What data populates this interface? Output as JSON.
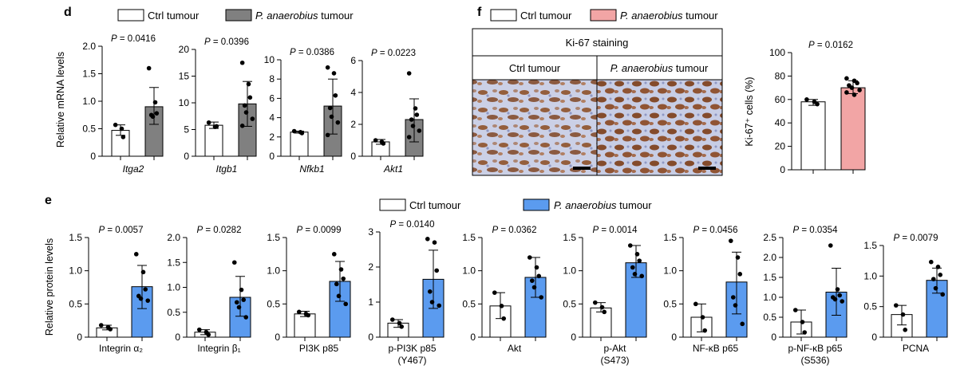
{
  "panels": {
    "d": {
      "label": "d",
      "legend": [
        {
          "name": "Ctrl tumour",
          "prefix": "",
          "italic": "",
          "suffix": "Ctrl tumour",
          "color": "#ffffff"
        },
        {
          "name": "P. anaerobius tumour",
          "prefix": "",
          "italic": "P. anaerobius",
          "suffix": " tumour",
          "color": "#808080"
        }
      ],
      "ylabel": "Relative mRNA levels"
    },
    "e": {
      "label": "e",
      "legend": [
        {
          "name": "Ctrl tumour",
          "prefix": "",
          "italic": "",
          "suffix": "Ctrl tumour",
          "color": "#ffffff"
        },
        {
          "name": "P. anaerobius tumour",
          "prefix": "",
          "italic": "P. anaerobius",
          "suffix": " tumour",
          "color": "#5b9bef"
        }
      ],
      "ylabel": "Relative protein levels"
    },
    "f": {
      "label": "f",
      "legend": [
        {
          "name": "Ctrl tumour",
          "prefix": "",
          "italic": "",
          "suffix": "Ctrl tumour",
          "color": "#ffffff"
        },
        {
          "name": "P. anaerobius tumour",
          "prefix": "",
          "italic": "P. anaerobius",
          "suffix": " tumour",
          "color": "#f2a5a5"
        }
      ],
      "staining_title": "Ki-67 staining",
      "image_labels": [
        "Ctrl tumour",
        "P. anaerobius tumour"
      ],
      "ylabel": "Ki-67⁺ cells (%)"
    }
  },
  "colors": {
    "ctrl": "#ffffff",
    "d_treat": "#808080",
    "e_treat": "#5b9bef",
    "f_treat": "#f2a5a5",
    "stain_brown": "#8b4a1f",
    "stain_blue": "#c9cfe6"
  },
  "chart_data": [
    {
      "panel": "d",
      "type": "bar",
      "gene": "Itga2",
      "ylim": [
        0,
        2
      ],
      "ticks": [
        0,
        0.5,
        1,
        1.5,
        2
      ],
      "tick_labels": [
        "0",
        "0.5",
        "1.0",
        "1.5",
        "2.0"
      ],
      "p": "P = 0.0416",
      "series": [
        {
          "name": "Ctrl tumour",
          "mean": 0.47,
          "err": [
            0.38,
            0.57
          ],
          "points": [
            0.57,
            0.5,
            0.35
          ]
        },
        {
          "name": "P. anaerobius tumour",
          "mean": 0.9,
          "err": [
            0.58,
            1.25
          ],
          "points": [
            1.6,
            0.98,
            0.78,
            0.75,
            0.72
          ]
        }
      ]
    },
    {
      "panel": "d",
      "type": "bar",
      "gene": "Itgb1",
      "ylim": [
        0,
        20
      ],
      "ticks": [
        0,
        5,
        10,
        15,
        20
      ],
      "tick_labels": [
        "0",
        "5",
        "10",
        "15",
        "20"
      ],
      "p": "P = 0.0396",
      "series": [
        {
          "name": "Ctrl tumour",
          "mean": 5.8,
          "err": [
            5.2,
            6.4
          ],
          "points": [
            6.3,
            5.5,
            5.6
          ]
        },
        {
          "name": "P. anaerobius tumour",
          "mean": 9.8,
          "err": [
            5.6,
            14.0
          ],
          "points": [
            17.5,
            13.5,
            11.0,
            9.5,
            8.2,
            7.0,
            5.7
          ]
        }
      ]
    },
    {
      "panel": "d",
      "type": "bar",
      "gene": "Nfkb1",
      "ylim": [
        0,
        10
      ],
      "ticks": [
        0,
        2,
        4,
        6,
        8,
        10
      ],
      "tick_labels": [
        "0",
        "2",
        "4",
        "6",
        "8",
        "10"
      ],
      "p": "P = 0.0386",
      "series": [
        {
          "name": "Ctrl tumour",
          "mean": 2.5,
          "err": [
            2.4,
            2.6
          ],
          "points": [
            2.6,
            2.5,
            2.4
          ]
        },
        {
          "name": "P. anaerobius tumour",
          "mean": 5.2,
          "err": [
            2.3,
            8.0
          ],
          "points": [
            9.2,
            8.6,
            6.3,
            5.0,
            4.1,
            3.5,
            2.2
          ]
        }
      ]
    },
    {
      "panel": "d",
      "type": "bar",
      "gene": "Akt1",
      "ylim": [
        0,
        6
      ],
      "ticks": [
        0,
        2,
        4,
        6
      ],
      "tick_labels": [
        "0",
        "2",
        "4",
        "6"
      ],
      "p": "P = 0.0223",
      "series": [
        {
          "name": "Ctrl tumour",
          "mean": 0.9,
          "err": [
            0.75,
            1.05
          ],
          "points": [
            1.0,
            0.9,
            0.8
          ]
        },
        {
          "name": "P. anaerobius tumour",
          "mean": 2.3,
          "err": [
            0.9,
            3.6
          ],
          "points": [
            5.2,
            3.0,
            2.6,
            2.3,
            1.9,
            1.6,
            1.2
          ]
        }
      ]
    },
    {
      "panel": "e",
      "type": "bar",
      "category": "Integrin α₂",
      "ylim": [
        0,
        1.5
      ],
      "ticks": [
        0,
        0.5,
        1,
        1.5
      ],
      "tick_labels": [
        "0",
        "0.5",
        "1.0",
        "1.5"
      ],
      "p": "P = 0.0057",
      "series": [
        {
          "name": "Ctrl tumour",
          "mean": 0.14,
          "err": [
            0.11,
            0.18
          ],
          "points": [
            0.18,
            0.15,
            0.12
          ]
        },
        {
          "name": "P. anaerobius tumour",
          "mean": 0.76,
          "err": [
            0.43,
            1.08
          ],
          "points": [
            1.25,
            0.98,
            0.72,
            0.62,
            0.58,
            0.55
          ]
        }
      ]
    },
    {
      "panel": "e",
      "type": "bar",
      "category": "Integrin β₁",
      "ylim": [
        0,
        2
      ],
      "ticks": [
        0,
        0.5,
        1,
        1.5,
        2
      ],
      "tick_labels": [
        "0",
        "0.5",
        "1.0",
        "1.5",
        "2.0"
      ],
      "p": "P = 0.0282",
      "series": [
        {
          "name": "Ctrl tumour",
          "mean": 0.1,
          "err": [
            0.05,
            0.15
          ],
          "points": [
            0.15,
            0.1,
            0.05
          ]
        },
        {
          "name": "P. anaerobius tumour",
          "mean": 0.8,
          "err": [
            0.42,
            1.22
          ],
          "points": [
            1.5,
            0.95,
            0.75,
            0.7,
            0.6,
            0.4
          ]
        }
      ]
    },
    {
      "panel": "e",
      "type": "bar",
      "category": "PI3K p85",
      "ylim": [
        0,
        1.5
      ],
      "ticks": [
        0,
        0.5,
        1,
        1.5
      ],
      "tick_labels": [
        "0",
        "0.5",
        "1.0",
        "1.5"
      ],
      "p": "P = 0.0099",
      "series": [
        {
          "name": "Ctrl tumour",
          "mean": 0.35,
          "err": [
            0.31,
            0.39
          ],
          "points": [
            0.38,
            0.35,
            0.33
          ]
        },
        {
          "name": "P. anaerobius tumour",
          "mean": 0.84,
          "err": [
            0.54,
            1.14
          ],
          "points": [
            1.25,
            1.02,
            0.88,
            0.8,
            0.62,
            0.5
          ]
        }
      ]
    },
    {
      "panel": "e",
      "type": "bar",
      "category": "p-PI3K p85 (Y467)",
      "lines": [
        "p-PI3K p85",
        "(Y467)"
      ],
      "ylim": [
        0,
        3
      ],
      "ticks": [
        0,
        1,
        2,
        3
      ],
      "tick_labels": [
        "0",
        "1",
        "2",
        "3"
      ],
      "p": "P = 0.0140",
      "series": [
        {
          "name": "Ctrl tumour",
          "mean": 0.4,
          "err": [
            0.28,
            0.5
          ],
          "points": [
            0.5,
            0.4,
            0.3
          ]
        },
        {
          "name": "P. anaerobius tumour",
          "mean": 1.65,
          "err": [
            0.82,
            2.48
          ],
          "points": [
            2.8,
            2.7,
            1.9,
            1.3,
            1.0,
            0.9
          ]
        }
      ]
    },
    {
      "panel": "e",
      "type": "bar",
      "category": "Akt",
      "ylim": [
        0,
        1.5
      ],
      "ticks": [
        0,
        0.5,
        1,
        1.5
      ],
      "tick_labels": [
        "0",
        "0.5",
        "1.0",
        "1.5"
      ],
      "p": "P = 0.0362",
      "series": [
        {
          "name": "Ctrl tumour",
          "mean": 0.47,
          "err": [
            0.28,
            0.67
          ],
          "points": [
            0.67,
            0.47,
            0.28
          ]
        },
        {
          "name": "P. anaerobius tumour",
          "mean": 0.9,
          "err": [
            0.6,
            1.2
          ],
          "points": [
            1.2,
            1.05,
            0.92,
            0.85,
            0.75,
            0.6
          ]
        }
      ]
    },
    {
      "panel": "e",
      "type": "bar",
      "category": "p-Akt (S473)",
      "lines": [
        "p-Akt",
        "(S473)"
      ],
      "ylim": [
        0,
        1.5
      ],
      "ticks": [
        0,
        0.5,
        1,
        1.5
      ],
      "tick_labels": [
        "0",
        "0.5",
        "1.0",
        "1.5"
      ],
      "p": "P = 0.0014",
      "series": [
        {
          "name": "Ctrl tumour",
          "mean": 0.44,
          "err": [
            0.38,
            0.52
          ],
          "points": [
            0.52,
            0.45,
            0.38
          ]
        },
        {
          "name": "P. anaerobius tumour",
          "mean": 1.12,
          "err": [
            0.9,
            1.38
          ],
          "points": [
            1.38,
            1.25,
            1.15,
            1.05,
            0.95,
            0.92
          ]
        }
      ]
    },
    {
      "panel": "e",
      "type": "bar",
      "category": "NF-κB p65",
      "ylim": [
        0,
        1.5
      ],
      "ticks": [
        0,
        0.5,
        1,
        1.5
      ],
      "tick_labels": [
        "0",
        "0.5",
        "1.0",
        "1.5"
      ],
      "p": "P = 0.0456",
      "series": [
        {
          "name": "Ctrl tumour",
          "mean": 0.3,
          "err": [
            0.08,
            0.5
          ],
          "points": [
            0.5,
            0.3,
            0.1
          ]
        },
        {
          "name": "P. anaerobius tumour",
          "mean": 0.83,
          "err": [
            0.35,
            1.28
          ],
          "points": [
            1.45,
            1.2,
            0.95,
            0.6,
            0.48,
            0.2
          ]
        }
      ]
    },
    {
      "panel": "e",
      "type": "bar",
      "category": "p-NF-κB p65 (S536)",
      "lines": [
        "p-NF-κB p65",
        "(S536)"
      ],
      "ylim": [
        0,
        2.5
      ],
      "ticks": [
        0,
        0.5,
        1,
        1.5,
        2,
        2.5
      ],
      "tick_labels": [
        "0",
        "0.5",
        "1.0",
        "1.5",
        "2.0",
        "2.5"
      ],
      "p": "P = 0.0354",
      "series": [
        {
          "name": "Ctrl tumour",
          "mean": 0.38,
          "err": [
            0.08,
            0.68
          ],
          "points": [
            0.68,
            0.38,
            0.12
          ]
        },
        {
          "name": "P. anaerobius tumour",
          "mean": 1.13,
          "err": [
            0.55,
            1.73
          ],
          "points": [
            2.3,
            1.2,
            1.05,
            1.0,
            0.95,
            0.9
          ]
        }
      ]
    },
    {
      "panel": "e",
      "type": "bar",
      "category": "PCNA",
      "ylim": [
        0,
        1.5
      ],
      "ticks": [
        0,
        0.5,
        1,
        1.5
      ],
      "tick_labels": [
        "0",
        "0.5",
        "1.0",
        "1.5"
      ],
      "p": "P = 0.0079",
      "series": [
        {
          "name": "Ctrl tumour",
          "mean": 0.37,
          "err": [
            0.2,
            0.52
          ],
          "points": [
            0.52,
            0.37,
            0.12
          ]
        },
        {
          "name": "P. anaerobius tumour",
          "mean": 0.93,
          "err": [
            0.72,
            1.13
          ],
          "points": [
            1.23,
            1.15,
            1.02,
            0.95,
            0.8,
            0.7
          ]
        }
      ]
    },
    {
      "panel": "f",
      "type": "bar",
      "ylim": [
        0,
        100
      ],
      "ticks": [
        0,
        20,
        40,
        60,
        80,
        100
      ],
      "tick_labels": [
        "0",
        "20",
        "40",
        "60",
        "80",
        "100"
      ],
      "p": "P = 0.0162",
      "series": [
        {
          "name": "Ctrl tumour",
          "mean": 58,
          "err": [
            55,
            60
          ],
          "points": [
            60,
            58,
            56
          ]
        },
        {
          "name": "P. anaerobius tumour",
          "mean": 70,
          "err": [
            65,
            76
          ],
          "points": [
            78,
            76,
            74,
            72,
            70,
            68,
            66,
            64
          ]
        }
      ]
    }
  ]
}
